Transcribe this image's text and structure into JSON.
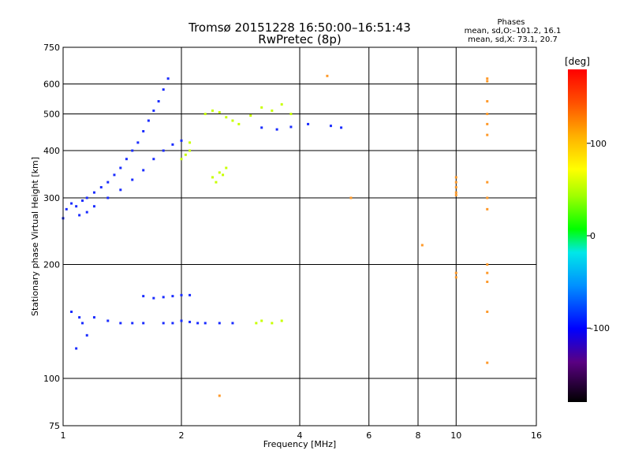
{
  "title_line1": "Tromsø 20151228 16:50:00–16:51:43",
  "title_line2": "RwPretec (8p)",
  "phases_legend": {
    "heading": "Phases",
    "line_o": "mean, sd,O:–101.2, 16.1",
    "line_x": "mean, sd,X:  73.1, 20.7"
  },
  "chart_data": {
    "type": "scatter",
    "xlabel": "Frequency [MHz]",
    "ylabel": "Stationary phase Virtual Height [km]",
    "xscale": "log",
    "yscale": "log",
    "xlim": [
      1,
      16
    ],
    "ylim": [
      75,
      750
    ],
    "xticks": [
      1,
      2,
      4,
      6,
      8,
      10,
      16
    ],
    "yticks": [
      75,
      100,
      200,
      300,
      400,
      500,
      600,
      750
    ],
    "grid": true,
    "colorbar": {
      "label": "[deg]",
      "range": [
        -180,
        180
      ],
      "ticks": [
        100,
        0,
        -100
      ],
      "colormap": "rainbow"
    },
    "series": [
      {
        "values": [
          [
            1.0,
            265
          ],
          [
            1.02,
            280
          ],
          [
            1.05,
            290
          ],
          [
            1.08,
            285
          ],
          [
            1.12,
            295
          ],
          [
            1.15,
            300
          ],
          [
            1.2,
            310
          ],
          [
            1.25,
            320
          ],
          [
            1.3,
            330
          ],
          [
            1.35,
            345
          ],
          [
            1.4,
            360
          ],
          [
            1.45,
            380
          ],
          [
            1.5,
            400
          ],
          [
            1.55,
            420
          ],
          [
            1.6,
            450
          ],
          [
            1.65,
            480
          ],
          [
            1.7,
            510
          ],
          [
            1.75,
            540
          ],
          [
            1.8,
            580
          ],
          [
            1.85,
            620
          ],
          [
            1.1,
            270
          ],
          [
            1.15,
            275
          ],
          [
            1.2,
            285
          ],
          [
            1.3,
            300
          ],
          [
            1.4,
            315
          ],
          [
            1.5,
            335
          ],
          [
            1.6,
            355
          ],
          [
            1.7,
            380
          ],
          [
            1.8,
            400
          ],
          [
            1.9,
            415
          ],
          [
            2.0,
            425
          ],
          [
            1.05,
            150
          ],
          [
            1.1,
            145
          ],
          [
            1.12,
            140
          ],
          [
            1.15,
            130
          ],
          [
            1.08,
            120
          ],
          [
            1.2,
            145
          ],
          [
            1.3,
            142
          ],
          [
            1.4,
            140
          ],
          [
            1.5,
            140
          ],
          [
            1.6,
            140
          ],
          [
            1.8,
            140
          ],
          [
            1.9,
            140
          ],
          [
            2.0,
            142
          ],
          [
            2.1,
            141
          ],
          [
            2.2,
            140
          ],
          [
            2.3,
            140
          ],
          [
            2.5,
            140
          ],
          [
            2.7,
            140
          ],
          [
            1.6,
            165
          ],
          [
            1.7,
            163
          ],
          [
            1.8,
            164
          ],
          [
            1.9,
            165
          ],
          [
            2.0,
            166
          ],
          [
            2.1,
            166
          ],
          [
            3.2,
            460
          ],
          [
            3.5,
            455
          ],
          [
            3.8,
            462
          ],
          [
            4.2,
            470
          ],
          [
            4.8,
            465
          ],
          [
            5.1,
            460
          ]
        ]
      },
      {
        "values": [
          [
            2.1,
            420
          ],
          [
            2.3,
            500
          ],
          [
            2.4,
            510
          ],
          [
            2.5,
            505
          ],
          [
            2.6,
            490
          ],
          [
            2.7,
            480
          ],
          [
            2.8,
            470
          ],
          [
            3.0,
            495
          ],
          [
            3.2,
            520
          ],
          [
            3.4,
            510
          ],
          [
            3.6,
            530
          ],
          [
            3.8,
            500
          ],
          [
            2.4,
            340
          ],
          [
            2.5,
            350
          ],
          [
            2.6,
            360
          ],
          [
            2.45,
            330
          ],
          [
            2.55,
            345
          ],
          [
            2.0,
            380
          ],
          [
            2.05,
            390
          ],
          [
            2.1,
            400
          ],
          [
            3.1,
            140
          ],
          [
            3.2,
            142
          ],
          [
            3.4,
            140
          ],
          [
            3.6,
            142
          ]
        ]
      },
      {
        "values": [
          [
            10,
            340
          ],
          [
            10,
            330
          ],
          [
            10,
            320
          ],
          [
            10,
            310
          ],
          [
            10,
            305
          ],
          [
            10,
            190
          ],
          [
            10,
            185
          ],
          [
            12,
            620
          ],
          [
            12,
            610
          ],
          [
            12,
            540
          ],
          [
            12,
            500
          ],
          [
            12,
            470
          ],
          [
            12,
            440
          ],
          [
            12,
            330
          ],
          [
            12,
            300
          ],
          [
            12,
            280
          ],
          [
            12,
            200
          ],
          [
            12,
            190
          ],
          [
            12,
            180
          ],
          [
            12,
            150
          ],
          [
            12,
            110
          ],
          [
            8.2,
            225
          ],
          [
            5.4,
            300
          ],
          [
            4.7,
            630
          ],
          [
            2.5,
            90
          ]
        ]
      }
    ]
  }
}
